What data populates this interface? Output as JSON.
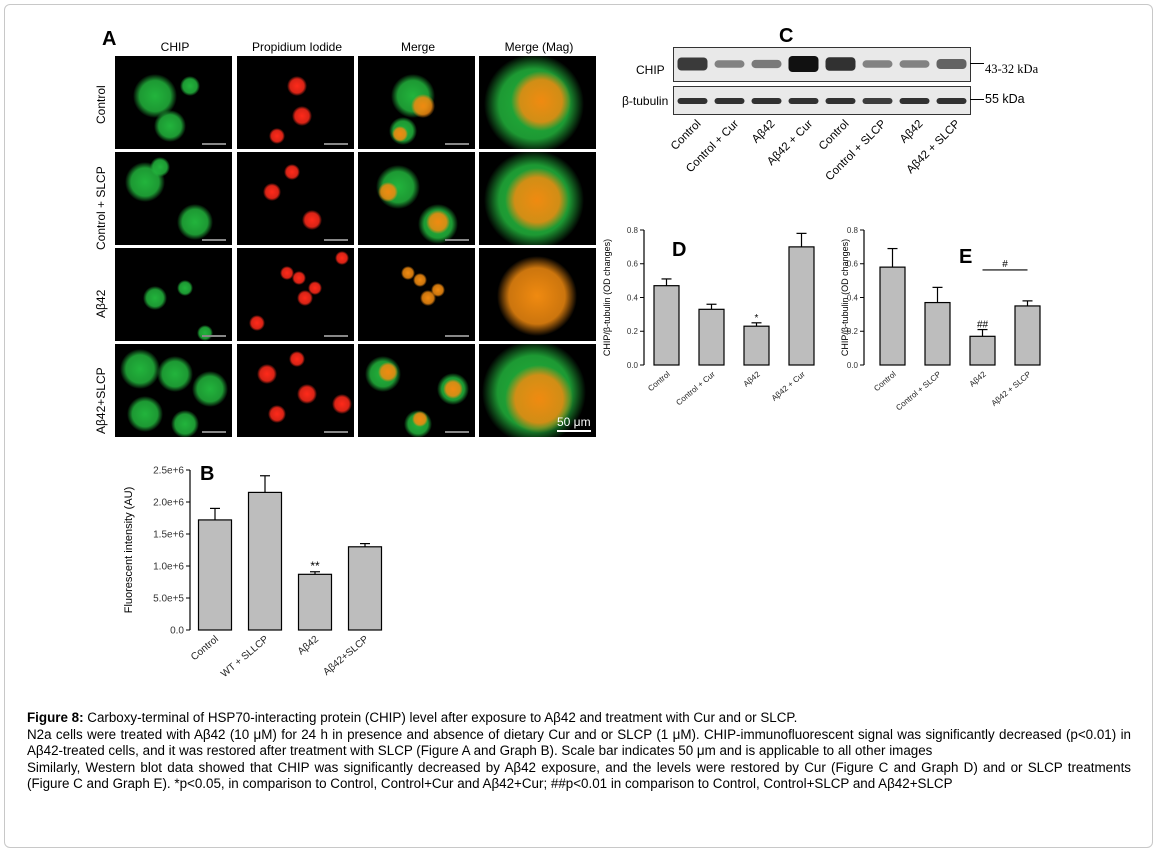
{
  "panelA": {
    "letter": "A",
    "columns": [
      "CHIP",
      "Propidium Iodide",
      "Merge",
      "Merge (Mag)"
    ],
    "rows": [
      "Control",
      "Control + SLCP",
      "Aβ42",
      "Aβ42+SLCP"
    ],
    "scale_label": "50 μm",
    "colors": {
      "green": "#22b43c",
      "red": "#ff2a1a",
      "orange": "#f08a10"
    }
  },
  "panelB": {
    "letter": "B",
    "chart_data": {
      "type": "bar",
      "categories": [
        "Control",
        "WT + SLLCP",
        "Aβ42",
        "Aβ42+SLCP"
      ],
      "values": [
        1720000,
        2150000,
        870000,
        1300000
      ],
      "errors": [
        180000,
        260000,
        40000,
        50000
      ],
      "annotations": [
        "",
        "",
        "**",
        ""
      ],
      "ylabel": "Fluorescent intensity (AU)",
      "yticks": [
        "0.0",
        "5.0e+5",
        "1.0e+6",
        "1.5e+6",
        "2.0e+6",
        "2.5e+6"
      ],
      "ylim": [
        0,
        2500000
      ]
    }
  },
  "panelC": {
    "letter": "C",
    "rows": [
      "CHIP",
      "β-tubulin"
    ],
    "weights": [
      "43-32 kDa",
      "55 kDa"
    ],
    "lanes": [
      "Control",
      "Control + Cur",
      "Aβ42",
      "Aβ42 + Cur",
      "Control",
      "Control + SLCP",
      "Aβ42",
      "Aβ42 + SLCP"
    ],
    "chip_intensity": [
      0.75,
      0.3,
      0.35,
      1.0,
      0.8,
      0.3,
      0.3,
      0.5
    ],
    "tubulin_intensity": [
      0.85,
      0.85,
      0.85,
      0.85,
      0.85,
      0.8,
      0.85,
      0.85
    ]
  },
  "panelD": {
    "letter": "D",
    "chart_data": {
      "type": "bar",
      "categories": [
        "Control",
        "Control + Cur",
        "Aβ42",
        "Aβ42 + Cur"
      ],
      "values": [
        0.47,
        0.33,
        0.23,
        0.7
      ],
      "errors": [
        0.04,
        0.03,
        0.02,
        0.08
      ],
      "annotations": [
        "",
        "",
        "*",
        ""
      ],
      "bracket": {
        "from": 2,
        "to": 3,
        "label": "**"
      },
      "ylabel": "CHIP/β-tubulin (OD changes)",
      "yticks": [
        "0.0",
        "0.2",
        "0.4",
        "0.6",
        "0.8"
      ],
      "ylim": [
        0,
        0.8
      ]
    }
  },
  "panelE": {
    "letter": "E",
    "chart_data": {
      "type": "bar",
      "categories": [
        "Control",
        "Control + SLCP",
        "Aβ42",
        "Aβ42 + SLCP"
      ],
      "values": [
        0.58,
        0.37,
        0.17,
        0.35
      ],
      "errors": [
        0.11,
        0.09,
        0.04,
        0.03
      ],
      "annotations": [
        "",
        "",
        "##",
        ""
      ],
      "bracket": {
        "from": 2,
        "to": 3,
        "label": "#"
      },
      "ylabel": "CHIP/β-tubulin (OD changes)",
      "yticks": [
        "0.0",
        "0.2",
        "0.4",
        "0.6",
        "0.8"
      ],
      "ylim": [
        0,
        0.8
      ]
    }
  },
  "caption": {
    "label": "Figure 8:",
    "title": " Carboxy-terminal of HSP70-interacting protein (CHIP) level after exposure to Aβ42 and treatment with Cur and or SLCP.",
    "para1": "N2a cells were treated with Aβ42 (10 μM) for 24 h in presence and absence of dietary Cur and or SLCP (1 μM). CHIP-immunofluorescent signal was significantly decreased (p<0.01) in Aβ42-treated cells, and it was restored after treatment with SLCP (Figure A and Graph B). Scale bar indicates 50 μm and is applicable to all other images",
    "para2": "Similarly, Western blot data showed that CHIP was significantly decreased by Aβ42 exposure, and the levels were restored by Cur (Figure C and Graph D) and or SLCP treatments (Figure C and Graph E). *p<0.05, in comparison to Control, Control+Cur and Aβ42+Cur; ##p<0.01 in comparison to Control, Control+SLCP and Aβ42+SLCP"
  }
}
